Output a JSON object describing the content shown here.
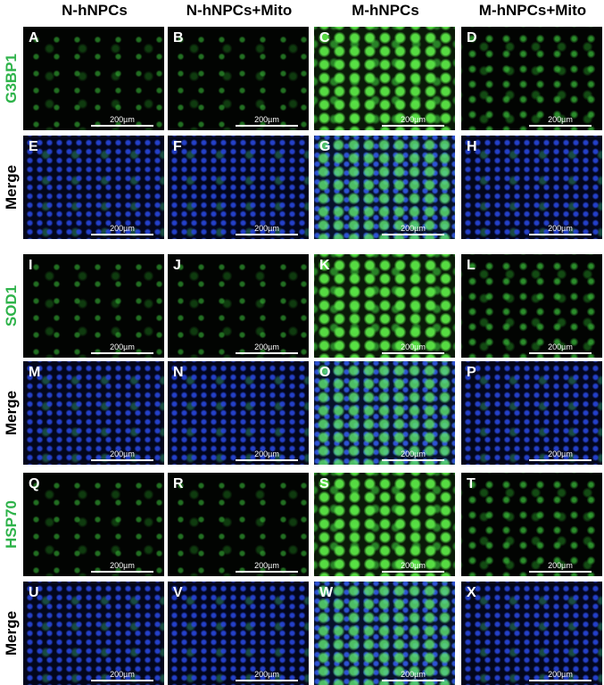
{
  "columns": [
    "N-hNPCs",
    "N-hNPCs+Mito",
    "M-hNPCs",
    "M-hNPCs+Mito"
  ],
  "rows": [
    {
      "label": "G3BP1",
      "panels": [
        {
          "letter": "A",
          "scale": "200µm"
        },
        {
          "letter": "B",
          "scale": "200µm"
        },
        {
          "letter": "C",
          "scale": "200µm"
        },
        {
          "letter": "D",
          "scale": "200µm"
        }
      ]
    },
    {
      "label": "Merge",
      "panels": [
        {
          "letter": "E",
          "scale": "200µm"
        },
        {
          "letter": "F",
          "scale": "200µm"
        },
        {
          "letter": "G",
          "scale": "200µm"
        },
        {
          "letter": "H",
          "scale": "200µm"
        }
      ]
    },
    {
      "label": "SOD1",
      "panels": [
        {
          "letter": "I",
          "scale": "200µm"
        },
        {
          "letter": "J",
          "scale": "200µm"
        },
        {
          "letter": "K",
          "scale": "200µm"
        },
        {
          "letter": "L",
          "scale": "200µm"
        }
      ]
    },
    {
      "label": "Merge",
      "panels": [
        {
          "letter": "M",
          "scale": "200µm"
        },
        {
          "letter": "N",
          "scale": "200µm"
        },
        {
          "letter": "O",
          "scale": "200µm"
        },
        {
          "letter": "P",
          "scale": "200µm"
        }
      ]
    },
    {
      "label": "HSP70",
      "panels": [
        {
          "letter": "Q",
          "scale": "200µm"
        },
        {
          "letter": "R",
          "scale": "200µm"
        },
        {
          "letter": "S",
          "scale": "200µm"
        },
        {
          "letter": "T",
          "scale": "200µm"
        }
      ]
    },
    {
      "label": "Merge",
      "panels": [
        {
          "letter": "U",
          "scale": "200µm"
        },
        {
          "letter": "V",
          "scale": "200µm"
        },
        {
          "letter": "W",
          "scale": "200µm"
        },
        {
          "letter": "X",
          "scale": "200µm"
        }
      ]
    }
  ]
}
